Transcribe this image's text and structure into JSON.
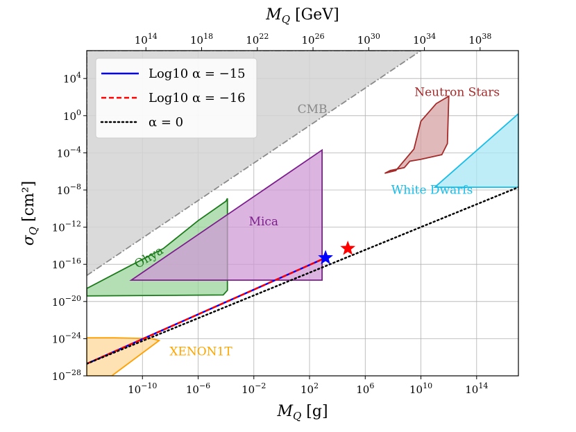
{
  "chart_data": {
    "type": "region-plot",
    "xlabel": "M_Q [g]",
    "top_xlabel": "M_Q [GeV]",
    "ylabel": "σ_Q [cm²]",
    "xscale": "log10",
    "yscale": "log10",
    "xlim_log10": [
      -14,
      17
    ],
    "ylim_log10": [
      -28,
      7
    ],
    "gev_to_g_log10": -23.75,
    "x_ticks_log10": [
      -10,
      -6,
      -2,
      2,
      6,
      10,
      14
    ],
    "x_tick_labels": [
      "10^-10",
      "10^-6",
      "10^-2",
      "10^2",
      "10^6",
      "10^10",
      "10^14"
    ],
    "y_ticks_log10": [
      -28,
      -24,
      -20,
      -16,
      -12,
      -8,
      -4,
      0,
      4
    ],
    "y_tick_labels": [
      "10^-28",
      "10^-24",
      "10^-20",
      "10^-16",
      "10^-12",
      "10^-8",
      "10^-4",
      "10^0",
      "10^4"
    ],
    "top_ticks_log10": [
      14,
      18,
      22,
      26,
      30,
      34,
      38
    ],
    "top_tick_labels": [
      "10^14",
      "10^18",
      "10^22",
      "10^26",
      "10^30",
      "10^34",
      "10^38"
    ],
    "grid": true,
    "legend_position": "top-left",
    "legend": [
      {
        "label": "Log10 α = −15",
        "color": "#0000ff",
        "style": "solid"
      },
      {
        "label": "Log10 α = −16",
        "color": "#ff0000",
        "style": "dashed"
      },
      {
        "label": "α = 0",
        "color": "#000000",
        "style": "dotted"
      }
    ],
    "regions": [
      {
        "name": "CMB",
        "label": "CMB",
        "fill": "#d3d3d3",
        "stroke": "#8a8a8a",
        "dash": true,
        "points": [
          [
            -14,
            -17.2
          ],
          [
            10,
            7
          ],
          [
            -14,
            7
          ]
        ]
      },
      {
        "name": "Ohya",
        "label": "Ohya",
        "fill": "#9bd39b",
        "stroke": "#1a7a1a",
        "points": [
          [
            -14,
            -18.6
          ],
          [
            -11.2,
            -16.4
          ],
          [
            -8.5,
            -14.3
          ],
          [
            -6,
            -11.3
          ],
          [
            -4,
            -9.2
          ],
          [
            -3.9,
            -8.9
          ],
          [
            -3.9,
            -18.8
          ],
          [
            -4.2,
            -19.3
          ],
          [
            -14,
            -19.4
          ]
        ]
      },
      {
        "name": "Mica",
        "label": "Mica",
        "fill": "#cf9bd6",
        "stroke": "#7c1e8c",
        "points": [
          [
            -10.8,
            -17.7
          ],
          [
            2.9,
            -3.7
          ],
          [
            2.9,
            -17.7
          ]
        ]
      },
      {
        "name": "XENON1T",
        "label": "XENON1T",
        "fill": "#ffd899",
        "stroke": "#ff9f00",
        "points": [
          [
            -14,
            -23.9
          ],
          [
            -12,
            -23.9
          ],
          [
            -9.3,
            -24
          ],
          [
            -8.8,
            -24.2
          ],
          [
            -12.2,
            -28
          ],
          [
            -14,
            -28
          ]
        ]
      },
      {
        "name": "Neutron Stars",
        "label": "Neutron Stars",
        "fill": "#d6a3a3",
        "stroke": "#a52a2a",
        "points": [
          [
            7.4,
            -6.2
          ],
          [
            8.2,
            -5.9
          ],
          [
            9.5,
            -3.6
          ],
          [
            10,
            -0.6
          ],
          [
            11.1,
            1.3
          ],
          [
            12,
            2.1
          ],
          [
            11.9,
            -3
          ],
          [
            11.5,
            -4.2
          ],
          [
            10,
            -4.7
          ],
          [
            9.2,
            -4.9
          ],
          [
            8.8,
            -5.6
          ],
          [
            7.8,
            -5.9
          ]
        ]
      },
      {
        "name": "White Dwarfs",
        "label": "White Dwarfs",
        "fill": "#a8e7f5",
        "stroke": "#16bde8",
        "points": [
          [
            11,
            -7.7
          ],
          [
            17,
            -7.7
          ],
          [
            17,
            0.2
          ]
        ]
      }
    ],
    "series": [
      {
        "name": "Log10 α = −15",
        "color": "#0000ff",
        "style": "solid",
        "x": [
          -14,
          3.15
        ],
        "y": [
          -26.7,
          -15.3
        ]
      },
      {
        "name": "Log10 α = −16",
        "color": "#ff0000",
        "style": "dashed",
        "x": [
          -14,
          3.15
        ],
        "y": [
          -26.7,
          -15.3
        ]
      },
      {
        "name": "α = 0",
        "color": "#000000",
        "style": "dotted",
        "x": [
          -14,
          17
        ],
        "y": [
          -26.7,
          -7.7
        ]
      }
    ],
    "markers": [
      {
        "name": "blue-star",
        "color": "#0000ff",
        "x": 3.15,
        "y": -15.3
      },
      {
        "name": "red-star",
        "color": "#ff0000",
        "x": 4.75,
        "y": -14.3
      }
    ]
  }
}
